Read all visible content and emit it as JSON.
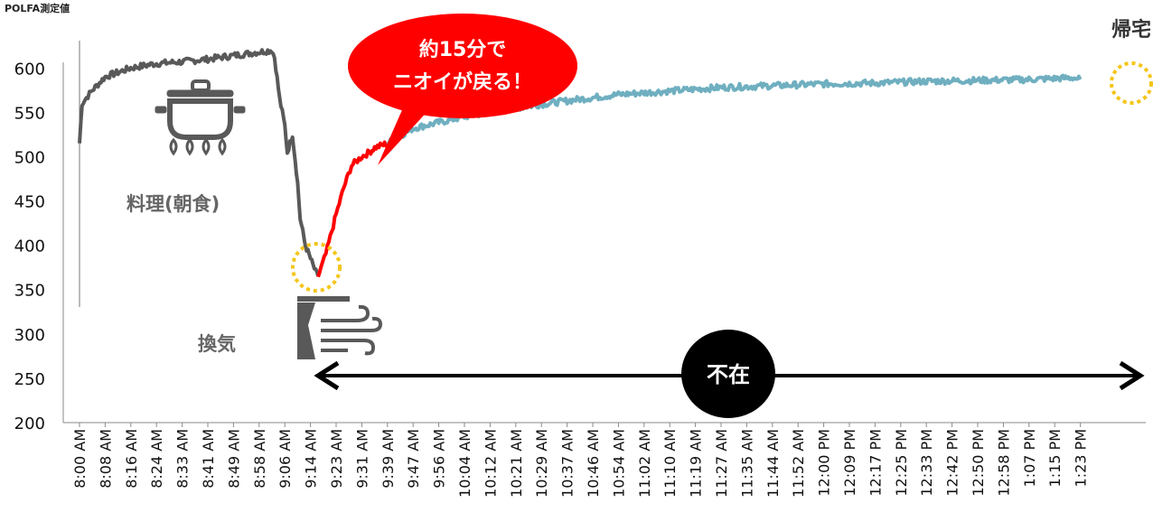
{
  "chart_data": {
    "type": "line",
    "ylabel": "POLFA測定値",
    "ylim": [
      200,
      620
    ],
    "yticks": [
      200,
      250,
      300,
      350,
      400,
      450,
      500,
      550,
      600
    ],
    "x_tick_labels": [
      "8:00 AM",
      "8:08 AM",
      "8:16 AM",
      "8:24 AM",
      "8:33 AM",
      "8:41 AM",
      "8:49 AM",
      "8:58 AM",
      "9:06 AM",
      "9:14 AM",
      "9:23 AM",
      "9:31 AM",
      "9:39 AM",
      "9:47 AM",
      "9:56 AM",
      "10:04 AM",
      "10:12 AM",
      "10:21 AM",
      "10:29 AM",
      "10:37 AM",
      "10:46 AM",
      "10:54 AM",
      "11:02 AM",
      "11:10 AM",
      "11:19 AM",
      "11:27 AM",
      "11:35 AM",
      "11:44 AM",
      "11:52 AM",
      "12:00 PM",
      "12:09 PM",
      "12:17 PM",
      "12:25 PM",
      "12:33 PM",
      "12:42 PM",
      "12:50 PM",
      "12:58 PM",
      "1:07 PM",
      "1:15 PM",
      "1:23 PM"
    ],
    "series": [
      {
        "color": "#595959",
        "points": [
          [
            0,
            515
          ],
          [
            0.1,
            560
          ],
          [
            0.5,
            575
          ],
          [
            1,
            590
          ],
          [
            2,
            600
          ],
          [
            3,
            605
          ],
          [
            4,
            607
          ],
          [
            5,
            610
          ],
          [
            6,
            614
          ],
          [
            7,
            618
          ],
          [
            7.5,
            620
          ],
          [
            7.6,
            612
          ],
          [
            7.8,
            565
          ],
          [
            8,
            535
          ],
          [
            8.1,
            505
          ],
          [
            8.3,
            525
          ],
          [
            8.5,
            470
          ],
          [
            8.6,
            430
          ],
          [
            8.8,
            400
          ],
          [
            9,
            385
          ],
          [
            9.2,
            370
          ],
          [
            9.3,
            365
          ]
        ]
      },
      {
        "color": "#ff0000",
        "points": [
          [
            9.3,
            365
          ],
          [
            9.6,
            390
          ],
          [
            10,
            435
          ],
          [
            10.3,
            465
          ],
          [
            10.6,
            490
          ],
          [
            11,
            500
          ],
          [
            11.3,
            505
          ],
          [
            11.5,
            510
          ],
          [
            12,
            515
          ]
        ]
      },
      {
        "color": "#6fafc0",
        "points": [
          [
            12,
            515
          ],
          [
            13,
            532
          ],
          [
            15,
            545
          ],
          [
            17,
            555
          ],
          [
            19,
            563
          ],
          [
            21,
            570
          ],
          [
            23,
            574
          ],
          [
            25,
            578
          ],
          [
            27,
            580
          ],
          [
            29,
            582
          ],
          [
            31,
            583
          ],
          [
            33,
            585
          ],
          [
            35,
            586
          ],
          [
            37,
            587
          ],
          [
            38.7,
            589
          ],
          [
            39,
            587
          ]
        ]
      }
    ]
  },
  "annotations": {
    "callout_line1": "約15分で",
    "callout_line2": "ニオイが戻る！",
    "cooking_label": "料理(朝食)",
    "ventilation_label": "換気",
    "absence_label": "不在",
    "return_home_label": "帰宅"
  },
  "icons": [
    "cooking-pot-icon",
    "wind-fan-icon"
  ],
  "colors": {
    "cooking": "#595959",
    "recovery": "#ff0000",
    "absent": "#6fafc0",
    "callout": "#ff0000",
    "highlight_circle": "#f5c518"
  }
}
